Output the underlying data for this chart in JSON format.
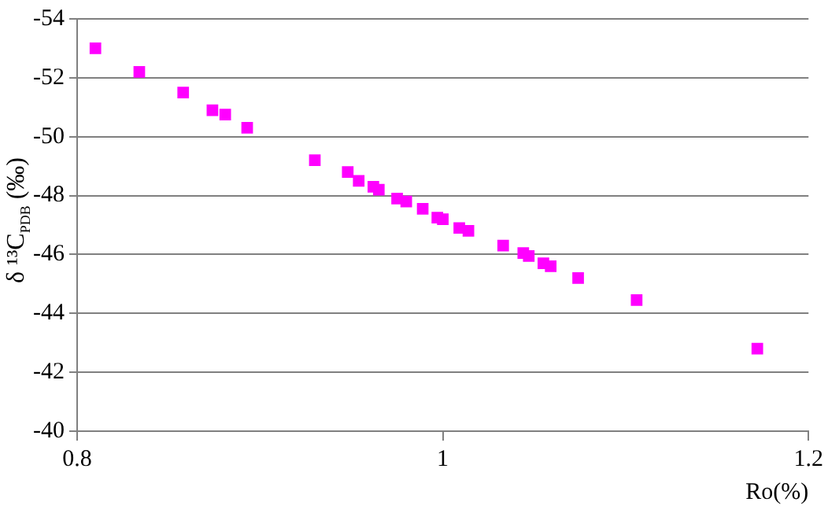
{
  "chart_data": {
    "type": "scatter",
    "xlabel": "Ro(%)",
    "ylabel": "δ ¹³C$_{PDB}$ (‰)",
    "series": [
      {
        "color": "#ff00ff",
        "x": [
          0.81,
          0.834,
          0.858,
          0.874,
          0.881,
          0.893,
          0.93,
          0.948,
          0.954,
          0.962,
          0.965,
          0.975,
          0.98,
          0.989,
          0.997,
          1.0,
          1.009,
          1.014,
          1.033,
          1.044,
          1.047,
          1.055,
          1.059,
          1.074,
          1.106,
          1.172
        ],
        "values": [
          -53.0,
          -52.2,
          -51.5,
          -50.9,
          -50.75,
          -50.3,
          -49.2,
          -48.8,
          -48.5,
          -48.3,
          -48.2,
          -47.9,
          -47.8,
          -47.55,
          -47.25,
          -47.2,
          -46.9,
          -46.8,
          -46.3,
          -46.05,
          -45.95,
          -45.7,
          -45.6,
          -45.2,
          -44.45,
          -42.8
        ]
      }
    ],
    "xlim": [
      0.8,
      1.2
    ],
    "xticks": [
      0.8,
      1,
      1.2
    ],
    "ylim": [
      -40,
      -54
    ],
    "yticks": [
      -54,
      -52,
      -50,
      -48,
      -46,
      -44,
      -42,
      -40
    ],
    "grid": "y",
    "legend": false,
    "marker": "square"
  }
}
